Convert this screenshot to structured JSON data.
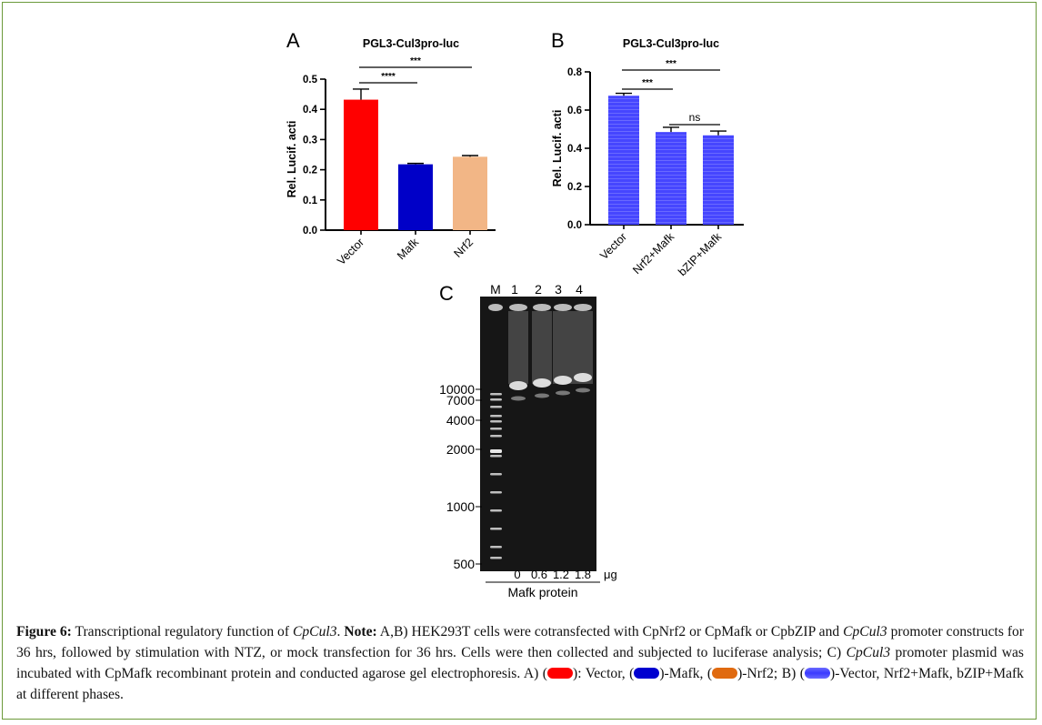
{
  "colors": {
    "vector_red": "#ff0000",
    "mafk_blue": "#0000c8",
    "nrf2_orange": "#f2b686",
    "b_blue": "#4a4aff",
    "swatch_orange": "#e06a10"
  },
  "chart_data": [
    {
      "panel": "A",
      "type": "bar",
      "title": "PGL3-Cul3pro-luc",
      "ylabel": "Rel. Lucif. acti",
      "ylim": [
        0,
        0.5
      ],
      "yticks": [
        "0.0",
        "0.1",
        "0.2",
        "0.3",
        "0.4",
        "0.5"
      ],
      "categories": [
        "Vector",
        "Mafk",
        "Nrf2"
      ],
      "values": [
        0.432,
        0.218,
        0.243
      ],
      "errors": [
        0.035,
        0.003,
        0.004
      ],
      "significance": [
        {
          "from": 0,
          "to": 1,
          "label": "****"
        },
        {
          "from": 0,
          "to": 2,
          "label": "***"
        }
      ]
    },
    {
      "panel": "B",
      "type": "bar",
      "title": "PGL3-Cul3pro-luc",
      "ylabel": "Rel. Lucif. acti",
      "ylim": [
        0,
        0.8
      ],
      "yticks": [
        "0.0",
        "0.2",
        "0.4",
        "0.6",
        "0.8"
      ],
      "categories": [
        "Vector",
        "Nrf2+Mafk",
        "bZIP+Mafk"
      ],
      "values": [
        0.675,
        0.485,
        0.468
      ],
      "errors": [
        0.013,
        0.025,
        0.022
      ],
      "significance": [
        {
          "from": 0,
          "to": 1,
          "label": "***"
        },
        {
          "from": 0,
          "to": 2,
          "label": "***"
        },
        {
          "from": 1,
          "to": 2,
          "label": "ns"
        }
      ]
    }
  ],
  "gel": {
    "panel": "C",
    "lane_labels": [
      "M",
      "1",
      "2",
      "3",
      "4"
    ],
    "marker_sizes": [
      "10000",
      "7000",
      "4000",
      "2000",
      "1000",
      "500"
    ],
    "doses": [
      "0",
      "0.6",
      "1.2",
      "1.8"
    ],
    "dose_unit": "μg",
    "x_label": "Mafk protein"
  },
  "caption": {
    "label": "Figure 6:",
    "t1": " Transcriptional regulatory function of ",
    "gene": "CpCul3",
    "t2": ". ",
    "note": "Note:",
    "t3": " A,B) HEK293T cells were cotransfected with CpNrf2 or CpMafk or CpbZIP and ",
    "t4": " promoter constructs for 36 hrs, followed by stimulation with NTZ, or mock transfection for 36 hrs. Cells were then collected and subjected to luciferase analysis; C) ",
    "t5": " promoter plasmid was incubated with CpMafk recombinant protein and conducted agarose gel electrophoresis. A) (",
    "t6": "): Vector, (",
    "t7": ")-Mafk, (",
    "t8": ")-Nrf2; B) (",
    "t9": ")-Vector, Nrf2+Mafk, bZIP+Mafk at different phases."
  }
}
